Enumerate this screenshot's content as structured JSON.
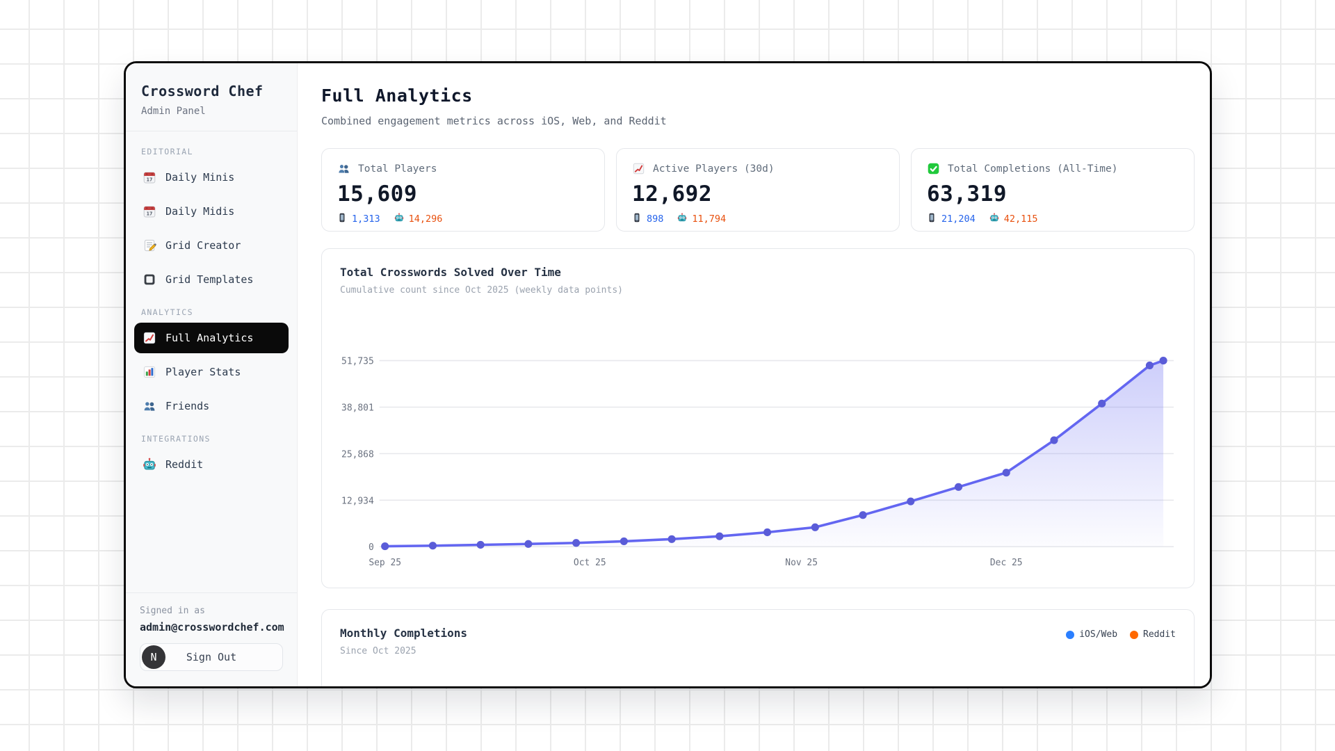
{
  "sidebar": {
    "title": "Crossword Chef",
    "subtitle": "Admin Panel",
    "sections": [
      {
        "label": "EDITORIAL",
        "items": [
          {
            "label": "Daily Minis",
            "icon": "calendar",
            "active": false
          },
          {
            "label": "Daily Midis",
            "icon": "calendar",
            "active": false
          },
          {
            "label": "Grid Creator",
            "icon": "memo",
            "active": false
          },
          {
            "label": "Grid Templates",
            "icon": "square",
            "active": false
          }
        ]
      },
      {
        "label": "ANALYTICS",
        "items": [
          {
            "label": "Full Analytics",
            "icon": "chart-up",
            "active": true
          },
          {
            "label": "Player Stats",
            "icon": "bar-chart",
            "active": false
          },
          {
            "label": "Friends",
            "icon": "users",
            "active": false
          }
        ]
      },
      {
        "label": "INTEGRATIONS",
        "items": [
          {
            "label": "Reddit",
            "icon": "robot",
            "active": false
          }
        ]
      }
    ],
    "footer": {
      "signed_in_label": "Signed in as",
      "email": "admin@crosswordchef.com",
      "avatar_letter": "N",
      "sign_out_label": "Sign Out"
    }
  },
  "header": {
    "title": "Full Analytics",
    "subtitle": "Combined engagement metrics across iOS, Web, and Reddit"
  },
  "stat_cards": [
    {
      "icon": "users",
      "label": "Total Players",
      "value": "15,609",
      "ios": "1,313",
      "reddit": "14,296"
    },
    {
      "icon": "chart-up",
      "label": "Active Players (30d)",
      "value": "12,692",
      "ios": "898",
      "reddit": "11,794"
    },
    {
      "icon": "check",
      "label": "Total Completions (All-Time)",
      "value": "63,319",
      "ios": "21,204",
      "reddit": "42,115"
    }
  ],
  "chart_data": {
    "type": "line",
    "title": "Total Crosswords Solved Over Time",
    "subtitle": "Cumulative count since Oct 2025 (weekly data points)",
    "x_days": [
      0,
      7,
      14,
      21,
      28,
      35,
      42,
      49,
      56,
      63,
      70,
      77,
      84,
      91,
      98,
      105,
      112,
      114
    ],
    "values": [
      120,
      280,
      520,
      760,
      1050,
      1500,
      2100,
      2900,
      4000,
      5400,
      8800,
      12600,
      16600,
      20600,
      29600,
      39800,
      50400,
      51735
    ],
    "y_ticks": [
      0,
      12934,
      25868,
      38801,
      51735
    ],
    "y_tick_labels": [
      "0",
      "12,934",
      "25,868",
      "38,801",
      "51,735"
    ],
    "x_ticks": [
      {
        "day": 0,
        "label": "Sep 25"
      },
      {
        "day": 30,
        "label": "Oct 25"
      },
      {
        "day": 61,
        "label": "Nov 25"
      },
      {
        "day": 91,
        "label": "Dec 25"
      }
    ],
    "ylim": [
      0,
      51735
    ],
    "grid": "horizontal",
    "line_color": "#6366f1",
    "dot_color": "#5a5cd8",
    "area_top_opacity": 0.32,
    "legend_position": "none"
  },
  "monthly_card": {
    "title": "Monthly Completions",
    "subtitle": "Since Oct 2025",
    "legend": [
      {
        "label": "iOS/Web",
        "color": "#2b7fff"
      },
      {
        "label": "Reddit",
        "color": "#ff6900"
      }
    ]
  },
  "colors": {
    "ios_value": "#2563eb",
    "reddit_value": "#e8500e",
    "active_nav_bg": "#0a0a0a",
    "chart_line": "#6366f1",
    "legend_blue": "#2b7fff",
    "legend_orange": "#ff6900"
  }
}
